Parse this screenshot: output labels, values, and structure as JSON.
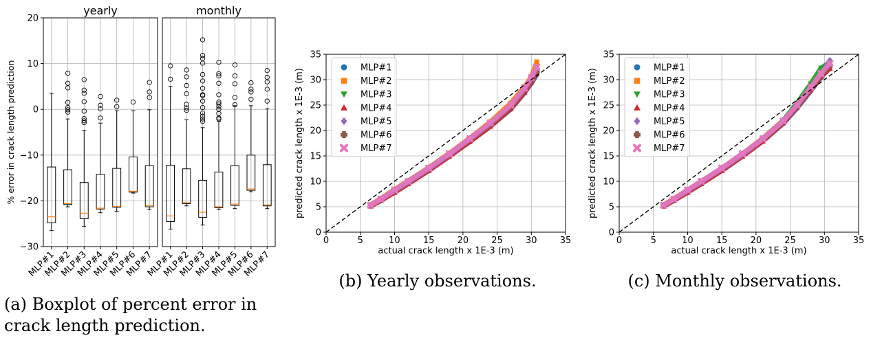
{
  "boxplot": {
    "ylabel": "% error in crack length prediction",
    "ylim": [
      -30,
      20
    ],
    "yticks": [
      -30,
      -20,
      -10,
      0,
      10,
      20
    ],
    "panels": [
      {
        "title": "yearly",
        "categories": [
          "MLP#1",
          "MLP#2",
          "MLP#3",
          "MLP#4",
          "MLP#5",
          "MLP#6",
          "MLP#7"
        ],
        "boxes": [
          {
            "whislo": -26.5,
            "q1": -24.8,
            "med": -23.5,
            "q3": -12.6,
            "whishi": 3.5,
            "fliers": []
          },
          {
            "whislo": -21.3,
            "q1": -20.8,
            "med": -20.6,
            "q3": -13.2,
            "whishi": -2.1,
            "fliers": [
              -0.6,
              -0.1,
              0.4,
              1.5,
              4.7,
              5.7,
              7.9
            ]
          },
          {
            "whislo": -25.6,
            "q1": -23.9,
            "med": -22.7,
            "q3": -16.0,
            "whishi": -4.6,
            "fliers": [
              -2.9,
              -2.5,
              -2.0,
              -0.4,
              1.7,
              3.5,
              4.2,
              6.5
            ]
          },
          {
            "whislo": -22.6,
            "q1": -21.8,
            "med": -21.6,
            "q3": -14.2,
            "whishi": -3.0,
            "fliers": [
              -1.9,
              0.1,
              0.9,
              2.8
            ]
          },
          {
            "whislo": -22.3,
            "q1": -21.4,
            "med": -21.2,
            "q3": -12.9,
            "whishi": -0.3,
            "fliers": [
              0.6,
              2.0
            ]
          },
          {
            "whislo": -18.3,
            "q1": -18.1,
            "med": -17.9,
            "q3": -10.4,
            "whishi": -0.3,
            "fliers": [
              1.6
            ]
          },
          {
            "whislo": -21.9,
            "q1": -21.3,
            "med": -21.0,
            "q3": -12.3,
            "whishi": -0.1,
            "fliers": [
              2.6,
              3.8,
              5.9
            ]
          }
        ]
      },
      {
        "title": "monthly",
        "categories": [
          "MLP#1",
          "MLP#2",
          "MLP#3",
          "MLP#4",
          "MLP#5",
          "MLP#6",
          "MLP#7"
        ],
        "boxes": [
          {
            "whislo": -26.2,
            "q1": -24.5,
            "med": -23.3,
            "q3": -12.2,
            "whishi": 5.0,
            "fliers": [
              6.6,
              9.5
            ]
          },
          {
            "whislo": -21.1,
            "q1": -20.6,
            "med": -20.4,
            "q3": -13.0,
            "whishi": -2.3,
            "fliers": [
              -0.2,
              0.3,
              1.1,
              3.4,
              5.2,
              7.1,
              8.6
            ]
          },
          {
            "whislo": -25.3,
            "q1": -23.6,
            "med": -22.5,
            "q3": -15.5,
            "whishi": -4.0,
            "fliers": [
              -2.6,
              -2.1,
              -1.5,
              -0.8,
              0.4,
              1.8,
              3.0,
              3.2,
              4.6,
              6.2,
              7.6,
              10.1,
              11.1,
              11.8,
              15.2
            ]
          },
          {
            "whislo": -21.9,
            "q1": -21.5,
            "med": -21.3,
            "q3": -13.7,
            "whishi": -2.6,
            "fliers": [
              -2.1,
              -1.9,
              -0.9,
              0.0,
              0.6,
              1.2,
              1.6,
              3.2,
              5.7,
              7.3,
              7.8,
              10.3
            ]
          },
          {
            "whislo": -21.7,
            "q1": -21.0,
            "med": -20.7,
            "q3": -12.3,
            "whishi": 0.8,
            "fliers": [
              1.0,
              2.6,
              5.6,
              7.3,
              9.7
            ]
          },
          {
            "whislo": -18.0,
            "q1": -17.7,
            "med": -17.4,
            "q3": -10.0,
            "whishi": 0.8,
            "fliers": [
              2.2,
              3.8,
              4.4,
              5.8
            ]
          },
          {
            "whislo": -21.7,
            "q1": -21.1,
            "med": -20.9,
            "q3": -12.1,
            "whishi": 0.1,
            "fliers": [
              1.8,
              4.4,
              6.0,
              7.0,
              8.5
            ]
          }
        ]
      }
    ]
  },
  "scatter_common": {
    "xlabel": "actual crack length x 1E-3 (m)",
    "ylabel": "predicted crack length x 1E-3 (m)",
    "xlim": [
      0,
      35
    ],
    "ylim": [
      0,
      35
    ],
    "ticks": [
      0,
      5,
      10,
      15,
      20,
      25,
      30,
      35
    ],
    "legend_position": "upper left",
    "series": [
      {
        "name": "MLP#1",
        "marker": "circle",
        "color": "#1f77b4"
      },
      {
        "name": "MLP#2",
        "marker": "square",
        "color": "#ff7f0e"
      },
      {
        "name": "MLP#3",
        "marker": "triangle-down",
        "color": "#2ca02c"
      },
      {
        "name": "MLP#4",
        "marker": "triangle-up",
        "color": "#d62728"
      },
      {
        "name": "MLP#5",
        "marker": "diamond",
        "color": "#9467bd"
      },
      {
        "name": "MLP#6",
        "marker": "plus",
        "color": "#8c564b"
      },
      {
        "name": "MLP#7",
        "marker": "x",
        "color": "#e377c2"
      }
    ]
  },
  "chart_data": [
    {
      "type": "box",
      "title": "yearly",
      "ylabel": "% error in crack length prediction",
      "categories": [
        "MLP#1",
        "MLP#2",
        "MLP#3",
        "MLP#4",
        "MLP#5",
        "MLP#6",
        "MLP#7"
      ],
      "medians": [
        -23.5,
        -20.6,
        -22.7,
        -21.6,
        -21.2,
        -17.9,
        -21.0
      ],
      "ylim": [
        -30,
        20
      ]
    },
    {
      "type": "box",
      "title": "monthly",
      "categories": [
        "MLP#1",
        "MLP#2",
        "MLP#3",
        "MLP#4",
        "MLP#5",
        "MLP#6",
        "MLP#7"
      ],
      "medians": [
        -23.3,
        -20.4,
        -22.5,
        -21.3,
        -20.7,
        -17.4,
        -20.9
      ],
      "ylim": [
        -30,
        20
      ]
    },
    {
      "type": "scatter",
      "xlabel": "actual crack length x 1E-3 (m)",
      "ylabel": "predicted crack length x 1E-3 (m)",
      "xlim": [
        0,
        35
      ],
      "ylim": [
        0,
        35
      ],
      "reference_line": "y = x (dashed)",
      "series": [
        {
          "name": "MLP#1",
          "x": [
            6.5,
            8,
            10,
            12,
            15,
            18,
            21,
            24,
            27,
            29,
            30,
            30.8
          ],
          "y": [
            5.2,
            6.3,
            8.0,
            9.6,
            12.2,
            15.0,
            17.8,
            20.8,
            24.2,
            27.4,
            29.3,
            31.0
          ]
        },
        {
          "name": "MLP#2",
          "x": [
            6.5,
            8,
            10,
            12,
            15,
            18,
            21,
            24,
            27,
            29,
            30,
            30.8
          ],
          "y": [
            5.4,
            6.6,
            8.4,
            10.1,
            12.7,
            15.5,
            18.5,
            21.7,
            25.4,
            28.6,
            30.6,
            33.5
          ]
        },
        {
          "name": "MLP#3",
          "x": [
            6.5,
            8,
            10,
            12,
            15,
            18,
            21,
            24,
            27,
            29,
            30,
            30.8
          ],
          "y": [
            5.2,
            6.4,
            8.1,
            9.8,
            12.4,
            15.2,
            18.1,
            21.1,
            24.7,
            27.9,
            29.9,
            32.0
          ]
        },
        {
          "name": "MLP#4",
          "x": [
            6.5,
            8,
            10,
            12,
            15,
            18,
            21,
            24,
            27,
            29,
            30,
            30.8
          ],
          "y": [
            5.1,
            6.2,
            7.8,
            9.5,
            12.1,
            14.9,
            17.8,
            20.8,
            24.3,
            27.5,
            29.5,
            31.3
          ]
        },
        {
          "name": "MLP#5",
          "x": [
            6.5,
            8,
            10,
            12,
            15,
            18,
            21,
            24,
            27,
            29,
            30,
            30.8
          ],
          "y": [
            5.3,
            6.4,
            8.1,
            9.8,
            12.4,
            15.2,
            18.2,
            21.2,
            24.8,
            28.0,
            30.0,
            32.2
          ]
        },
        {
          "name": "MLP#6",
          "x": [
            6.5,
            8,
            10,
            12,
            15,
            18,
            21,
            24,
            27,
            29,
            30,
            30.8
          ],
          "y": [
            5.3,
            6.5,
            8.3,
            10.0,
            12.6,
            15.4,
            18.4,
            21.4,
            24.9,
            28.1,
            30.1,
            31.6
          ]
        },
        {
          "name": "MLP#7",
          "x": [
            6.5,
            8,
            10,
            12,
            15,
            18,
            21,
            24,
            27,
            29,
            30,
            30.8
          ],
          "y": [
            5.3,
            6.5,
            8.3,
            10.0,
            12.6,
            15.4,
            18.4,
            21.5,
            25.0,
            28.3,
            30.4,
            32.5
          ]
        }
      ]
    },
    {
      "type": "scatter",
      "xlabel": "actual crack length x 1E-3 (m)",
      "ylabel": "predicted crack length x 1E-3 (m)",
      "xlim": [
        0,
        35
      ],
      "ylim": [
        0,
        35
      ],
      "reference_line": "y = x (dashed)",
      "series": [
        {
          "name": "MLP#1",
          "x": [
            6.5,
            8,
            10,
            12,
            15,
            18,
            21,
            24,
            26,
            28,
            29.5,
            30.8
          ],
          "y": [
            5.2,
            6.3,
            8.0,
            9.6,
            12.2,
            15.0,
            17.9,
            21.4,
            24.4,
            27.8,
            30.4,
            32.6
          ]
        },
        {
          "name": "MLP#2",
          "x": [
            6.5,
            8,
            10,
            12,
            15,
            18,
            21,
            24,
            26,
            28,
            29.5,
            30.8
          ],
          "y": [
            5.4,
            6.6,
            8.3,
            10.0,
            12.6,
            15.4,
            18.5,
            22.0,
            25.1,
            28.6,
            31.2,
            33.0
          ]
        },
        {
          "name": "MLP#3",
          "x": [
            6.5,
            8,
            10,
            12,
            15,
            18,
            21,
            24,
            26,
            28,
            29.5,
            30.8
          ],
          "y": [
            5.2,
            6.4,
            8.1,
            9.8,
            12.4,
            15.2,
            18.3,
            22.0,
            25.4,
            29.2,
            32.3,
            33.4
          ]
        },
        {
          "name": "MLP#4",
          "x": [
            6.5,
            8,
            10,
            12,
            15,
            18,
            21,
            24,
            26,
            28,
            29.5,
            30.8
          ],
          "y": [
            5.1,
            6.2,
            7.8,
            9.5,
            12.1,
            14.9,
            17.9,
            21.5,
            24.6,
            28.0,
            30.6,
            32.2
          ]
        },
        {
          "name": "MLP#5",
          "x": [
            6.5,
            8,
            10,
            12,
            15,
            18,
            21,
            24,
            26,
            28,
            29.5,
            30.8
          ],
          "y": [
            5.3,
            6.4,
            8.1,
            9.8,
            12.4,
            15.2,
            18.2,
            21.8,
            24.9,
            28.4,
            31.1,
            33.8
          ]
        },
        {
          "name": "MLP#6",
          "x": [
            6.5,
            8,
            10,
            12,
            15,
            18,
            21,
            24,
            26,
            28,
            29.5,
            30.8
          ],
          "y": [
            5.3,
            6.5,
            8.3,
            10.0,
            12.6,
            15.4,
            18.4,
            21.9,
            25.0,
            28.4,
            30.9,
            32.8
          ]
        },
        {
          "name": "MLP#7",
          "x": [
            6.5,
            8,
            10,
            12,
            15,
            18,
            21,
            24,
            26,
            28,
            29.5,
            30.8
          ],
          "y": [
            5.3,
            6.5,
            8.3,
            10.0,
            12.6,
            15.4,
            18.4,
            21.9,
            25.0,
            28.5,
            31.2,
            33.2
          ]
        }
      ]
    }
  ],
  "captions": {
    "a": "(a) Boxplot of percent error in crack length prediction.",
    "b": "(b) Yearly observations.",
    "c": "(c) Monthly observations."
  }
}
